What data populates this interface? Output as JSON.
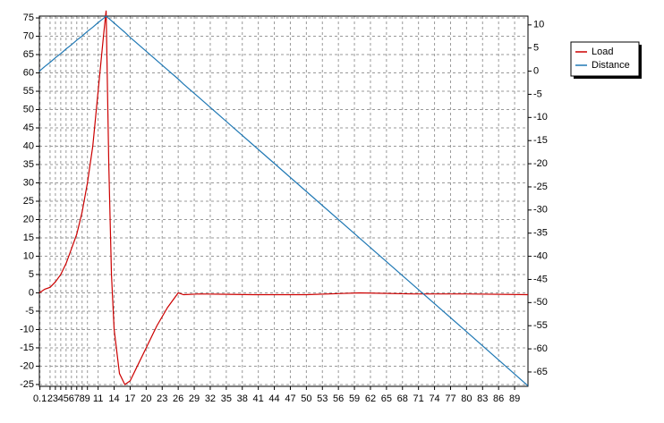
{
  "chart_data": {
    "type": "line",
    "x": [
      0,
      1,
      2,
      3,
      4,
      5,
      6,
      7,
      8,
      9,
      10,
      11,
      12,
      12.5,
      13,
      13.5,
      14,
      15,
      16,
      17,
      18,
      20,
      22,
      24,
      26,
      27,
      30,
      40,
      50,
      60,
      70,
      80,
      91.5
    ],
    "series": [
      {
        "name": "Load",
        "color": "#cc0000",
        "axis": "y",
        "values": [
          0,
          1,
          1.5,
          3,
          5,
          8,
          12,
          16,
          22,
          30,
          40,
          55,
          70,
          77,
          35,
          5,
          -10,
          -22,
          -25,
          -24,
          -21,
          -15,
          -9,
          -4,
          0,
          -0.5,
          -0.3,
          -0.5,
          -0.5,
          0,
          -0.3,
          -0.3,
          -0.5
        ]
      },
      {
        "name": "Distance",
        "color": "#1f78b4",
        "axis": "y2",
        "values": [
          0,
          1.0,
          1.9,
          2.9,
          3.8,
          4.8,
          5.7,
          6.7,
          7.6,
          8.6,
          9.5,
          10.5,
          11.4,
          11.9,
          11.4,
          10.9,
          10.4,
          9.4,
          8.4,
          7.3,
          6.3,
          4.3,
          2.3,
          0.3,
          -1.7,
          -2.8,
          -5.8,
          -15.9,
          -26.0,
          -36.1,
          -46.2,
          -56.3,
          -68.0
        ]
      }
    ],
    "xlim": [
      0,
      91.5
    ],
    "xticks": [
      0.1,
      2,
      3,
      4,
      5,
      6,
      7,
      8,
      9,
      11,
      14,
      17,
      20,
      23,
      26,
      29,
      32,
      35,
      38,
      41,
      44,
      47,
      50,
      53,
      56,
      59,
      62,
      65,
      68,
      71,
      74,
      77,
      80,
      83,
      86,
      89
    ],
    "ylim": [
      -25.5,
      75.5
    ],
    "yticks": [
      -25,
      -20,
      -15,
      -10,
      -5,
      0,
      5,
      10,
      15,
      20,
      25,
      30,
      35,
      40,
      45,
      50,
      55,
      60,
      65,
      70,
      75
    ],
    "y2lim": [
      -68.1,
      11.9
    ],
    "y2ticks": [
      -65,
      -60,
      -55,
      -50,
      -45,
      -40,
      -35,
      -30,
      -25,
      -20,
      -15,
      -10,
      -5,
      0,
      5,
      10
    ],
    "grid": true,
    "legend": "right"
  }
}
